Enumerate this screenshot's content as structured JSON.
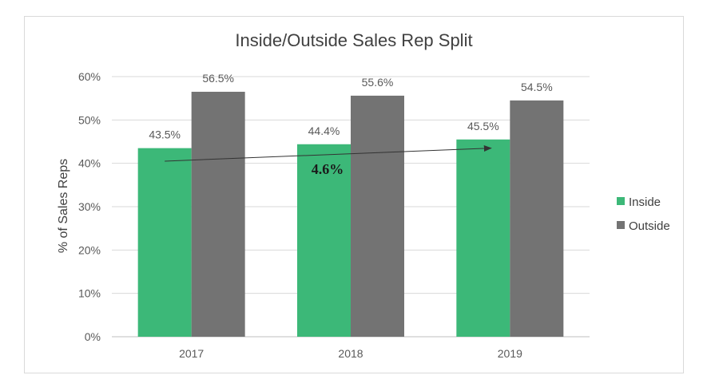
{
  "chart_data": {
    "type": "bar",
    "title": "Inside/Outside Sales Rep Split",
    "xlabel": "",
    "ylabel": "% of Sales Reps",
    "categories": [
      "2017",
      "2018",
      "2019"
    ],
    "ylim": [
      0,
      60
    ],
    "yticks": [
      0,
      10,
      20,
      30,
      40,
      50,
      60
    ],
    "ytick_labels": [
      "0%",
      "10%",
      "20%",
      "30%",
      "40%",
      "50%",
      "60%"
    ],
    "grid": true,
    "legend_position": "right",
    "series": [
      {
        "name": "Inside",
        "color": "#3cb878",
        "values": [
          43.5,
          44.4,
          45.5
        ],
        "labels": [
          "43.5%",
          "44.4%",
          "45.5%"
        ]
      },
      {
        "name": "Outside",
        "color": "#737373",
        "values": [
          56.5,
          55.6,
          54.5
        ],
        "labels": [
          "56.5%",
          "55.6%",
          "54.5%"
        ]
      }
    ],
    "annotation": {
      "text": "4.6%",
      "arrow_from": [
        "2017",
        40.5
      ],
      "arrow_to": [
        "2019",
        43.5
      ]
    }
  }
}
